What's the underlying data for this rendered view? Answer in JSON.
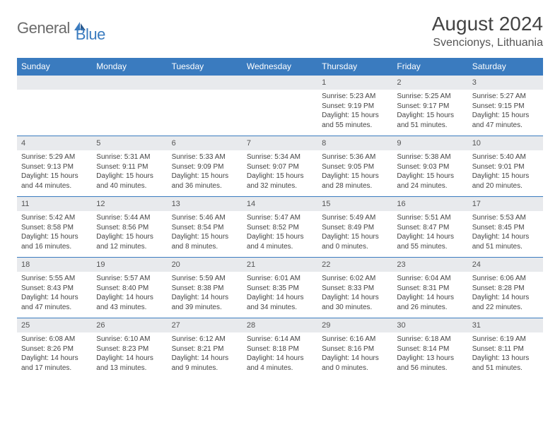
{
  "logo": {
    "part1": "General",
    "part2": "Blue"
  },
  "title": "August 2024",
  "location": "Svencionys, Lithuania",
  "colors": {
    "header_bg": "#3a7bbf",
    "header_text": "#ffffff",
    "date_bg": "#e8eaed",
    "border": "#3a7bbf",
    "logo_gray": "#6b6b6b",
    "logo_blue": "#3a7bbf"
  },
  "dayNames": [
    "Sunday",
    "Monday",
    "Tuesday",
    "Wednesday",
    "Thursday",
    "Friday",
    "Saturday"
  ],
  "weeks": [
    {
      "dates": [
        "",
        "",
        "",
        "",
        "1",
        "2",
        "3"
      ],
      "info": [
        null,
        null,
        null,
        null,
        {
          "sunrise": "5:23 AM",
          "sunset": "9:19 PM",
          "daylight": "15 hours and 55 minutes."
        },
        {
          "sunrise": "5:25 AM",
          "sunset": "9:17 PM",
          "daylight": "15 hours and 51 minutes."
        },
        {
          "sunrise": "5:27 AM",
          "sunset": "9:15 PM",
          "daylight": "15 hours and 47 minutes."
        }
      ]
    },
    {
      "dates": [
        "4",
        "5",
        "6",
        "7",
        "8",
        "9",
        "10"
      ],
      "info": [
        {
          "sunrise": "5:29 AM",
          "sunset": "9:13 PM",
          "daylight": "15 hours and 44 minutes."
        },
        {
          "sunrise": "5:31 AM",
          "sunset": "9:11 PM",
          "daylight": "15 hours and 40 minutes."
        },
        {
          "sunrise": "5:33 AM",
          "sunset": "9:09 PM",
          "daylight": "15 hours and 36 minutes."
        },
        {
          "sunrise": "5:34 AM",
          "sunset": "9:07 PM",
          "daylight": "15 hours and 32 minutes."
        },
        {
          "sunrise": "5:36 AM",
          "sunset": "9:05 PM",
          "daylight": "15 hours and 28 minutes."
        },
        {
          "sunrise": "5:38 AM",
          "sunset": "9:03 PM",
          "daylight": "15 hours and 24 minutes."
        },
        {
          "sunrise": "5:40 AM",
          "sunset": "9:01 PM",
          "daylight": "15 hours and 20 minutes."
        }
      ]
    },
    {
      "dates": [
        "11",
        "12",
        "13",
        "14",
        "15",
        "16",
        "17"
      ],
      "info": [
        {
          "sunrise": "5:42 AM",
          "sunset": "8:58 PM",
          "daylight": "15 hours and 16 minutes."
        },
        {
          "sunrise": "5:44 AM",
          "sunset": "8:56 PM",
          "daylight": "15 hours and 12 minutes."
        },
        {
          "sunrise": "5:46 AM",
          "sunset": "8:54 PM",
          "daylight": "15 hours and 8 minutes."
        },
        {
          "sunrise": "5:47 AM",
          "sunset": "8:52 PM",
          "daylight": "15 hours and 4 minutes."
        },
        {
          "sunrise": "5:49 AM",
          "sunset": "8:49 PM",
          "daylight": "15 hours and 0 minutes."
        },
        {
          "sunrise": "5:51 AM",
          "sunset": "8:47 PM",
          "daylight": "14 hours and 55 minutes."
        },
        {
          "sunrise": "5:53 AM",
          "sunset": "8:45 PM",
          "daylight": "14 hours and 51 minutes."
        }
      ]
    },
    {
      "dates": [
        "18",
        "19",
        "20",
        "21",
        "22",
        "23",
        "24"
      ],
      "info": [
        {
          "sunrise": "5:55 AM",
          "sunset": "8:43 PM",
          "daylight": "14 hours and 47 minutes."
        },
        {
          "sunrise": "5:57 AM",
          "sunset": "8:40 PM",
          "daylight": "14 hours and 43 minutes."
        },
        {
          "sunrise": "5:59 AM",
          "sunset": "8:38 PM",
          "daylight": "14 hours and 39 minutes."
        },
        {
          "sunrise": "6:01 AM",
          "sunset": "8:35 PM",
          "daylight": "14 hours and 34 minutes."
        },
        {
          "sunrise": "6:02 AM",
          "sunset": "8:33 PM",
          "daylight": "14 hours and 30 minutes."
        },
        {
          "sunrise": "6:04 AM",
          "sunset": "8:31 PM",
          "daylight": "14 hours and 26 minutes."
        },
        {
          "sunrise": "6:06 AM",
          "sunset": "8:28 PM",
          "daylight": "14 hours and 22 minutes."
        }
      ]
    },
    {
      "dates": [
        "25",
        "26",
        "27",
        "28",
        "29",
        "30",
        "31"
      ],
      "info": [
        {
          "sunrise": "6:08 AM",
          "sunset": "8:26 PM",
          "daylight": "14 hours and 17 minutes."
        },
        {
          "sunrise": "6:10 AM",
          "sunset": "8:23 PM",
          "daylight": "14 hours and 13 minutes."
        },
        {
          "sunrise": "6:12 AM",
          "sunset": "8:21 PM",
          "daylight": "14 hours and 9 minutes."
        },
        {
          "sunrise": "6:14 AM",
          "sunset": "8:18 PM",
          "daylight": "14 hours and 4 minutes."
        },
        {
          "sunrise": "6:16 AM",
          "sunset": "8:16 PM",
          "daylight": "14 hours and 0 minutes."
        },
        {
          "sunrise": "6:18 AM",
          "sunset": "8:14 PM",
          "daylight": "13 hours and 56 minutes."
        },
        {
          "sunrise": "6:19 AM",
          "sunset": "8:11 PM",
          "daylight": "13 hours and 51 minutes."
        }
      ]
    }
  ],
  "labels": {
    "sunrise": "Sunrise:",
    "sunset": "Sunset:",
    "daylight": "Daylight:"
  }
}
